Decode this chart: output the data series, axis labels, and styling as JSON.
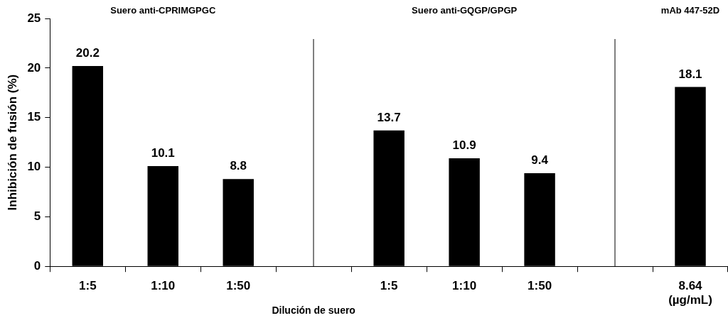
{
  "chart_data": {
    "type": "bar",
    "categories": [
      "1:5",
      "1:10",
      "1:50",
      null,
      "1:5",
      "1:10",
      "1:50",
      null,
      "8.64\n(µg/mL)"
    ],
    "values": [
      20.2,
      10.1,
      8.8,
      null,
      13.7,
      10.9,
      9.4,
      null,
      18.1
    ],
    "color": "#000000",
    "ylabel": "Inhibición de fusión (%)",
    "xlabel": "Dilución de suero",
    "annotations": [
      "Suero anti-CPRIMGPGC",
      "Suero anti-GQGP/GPGP",
      "mAb 447-52D"
    ],
    "ylim": [
      0,
      25
    ],
    "yticks": [
      0,
      5,
      10,
      15,
      20,
      25
    ],
    "legend": false,
    "data_labels": true
  }
}
